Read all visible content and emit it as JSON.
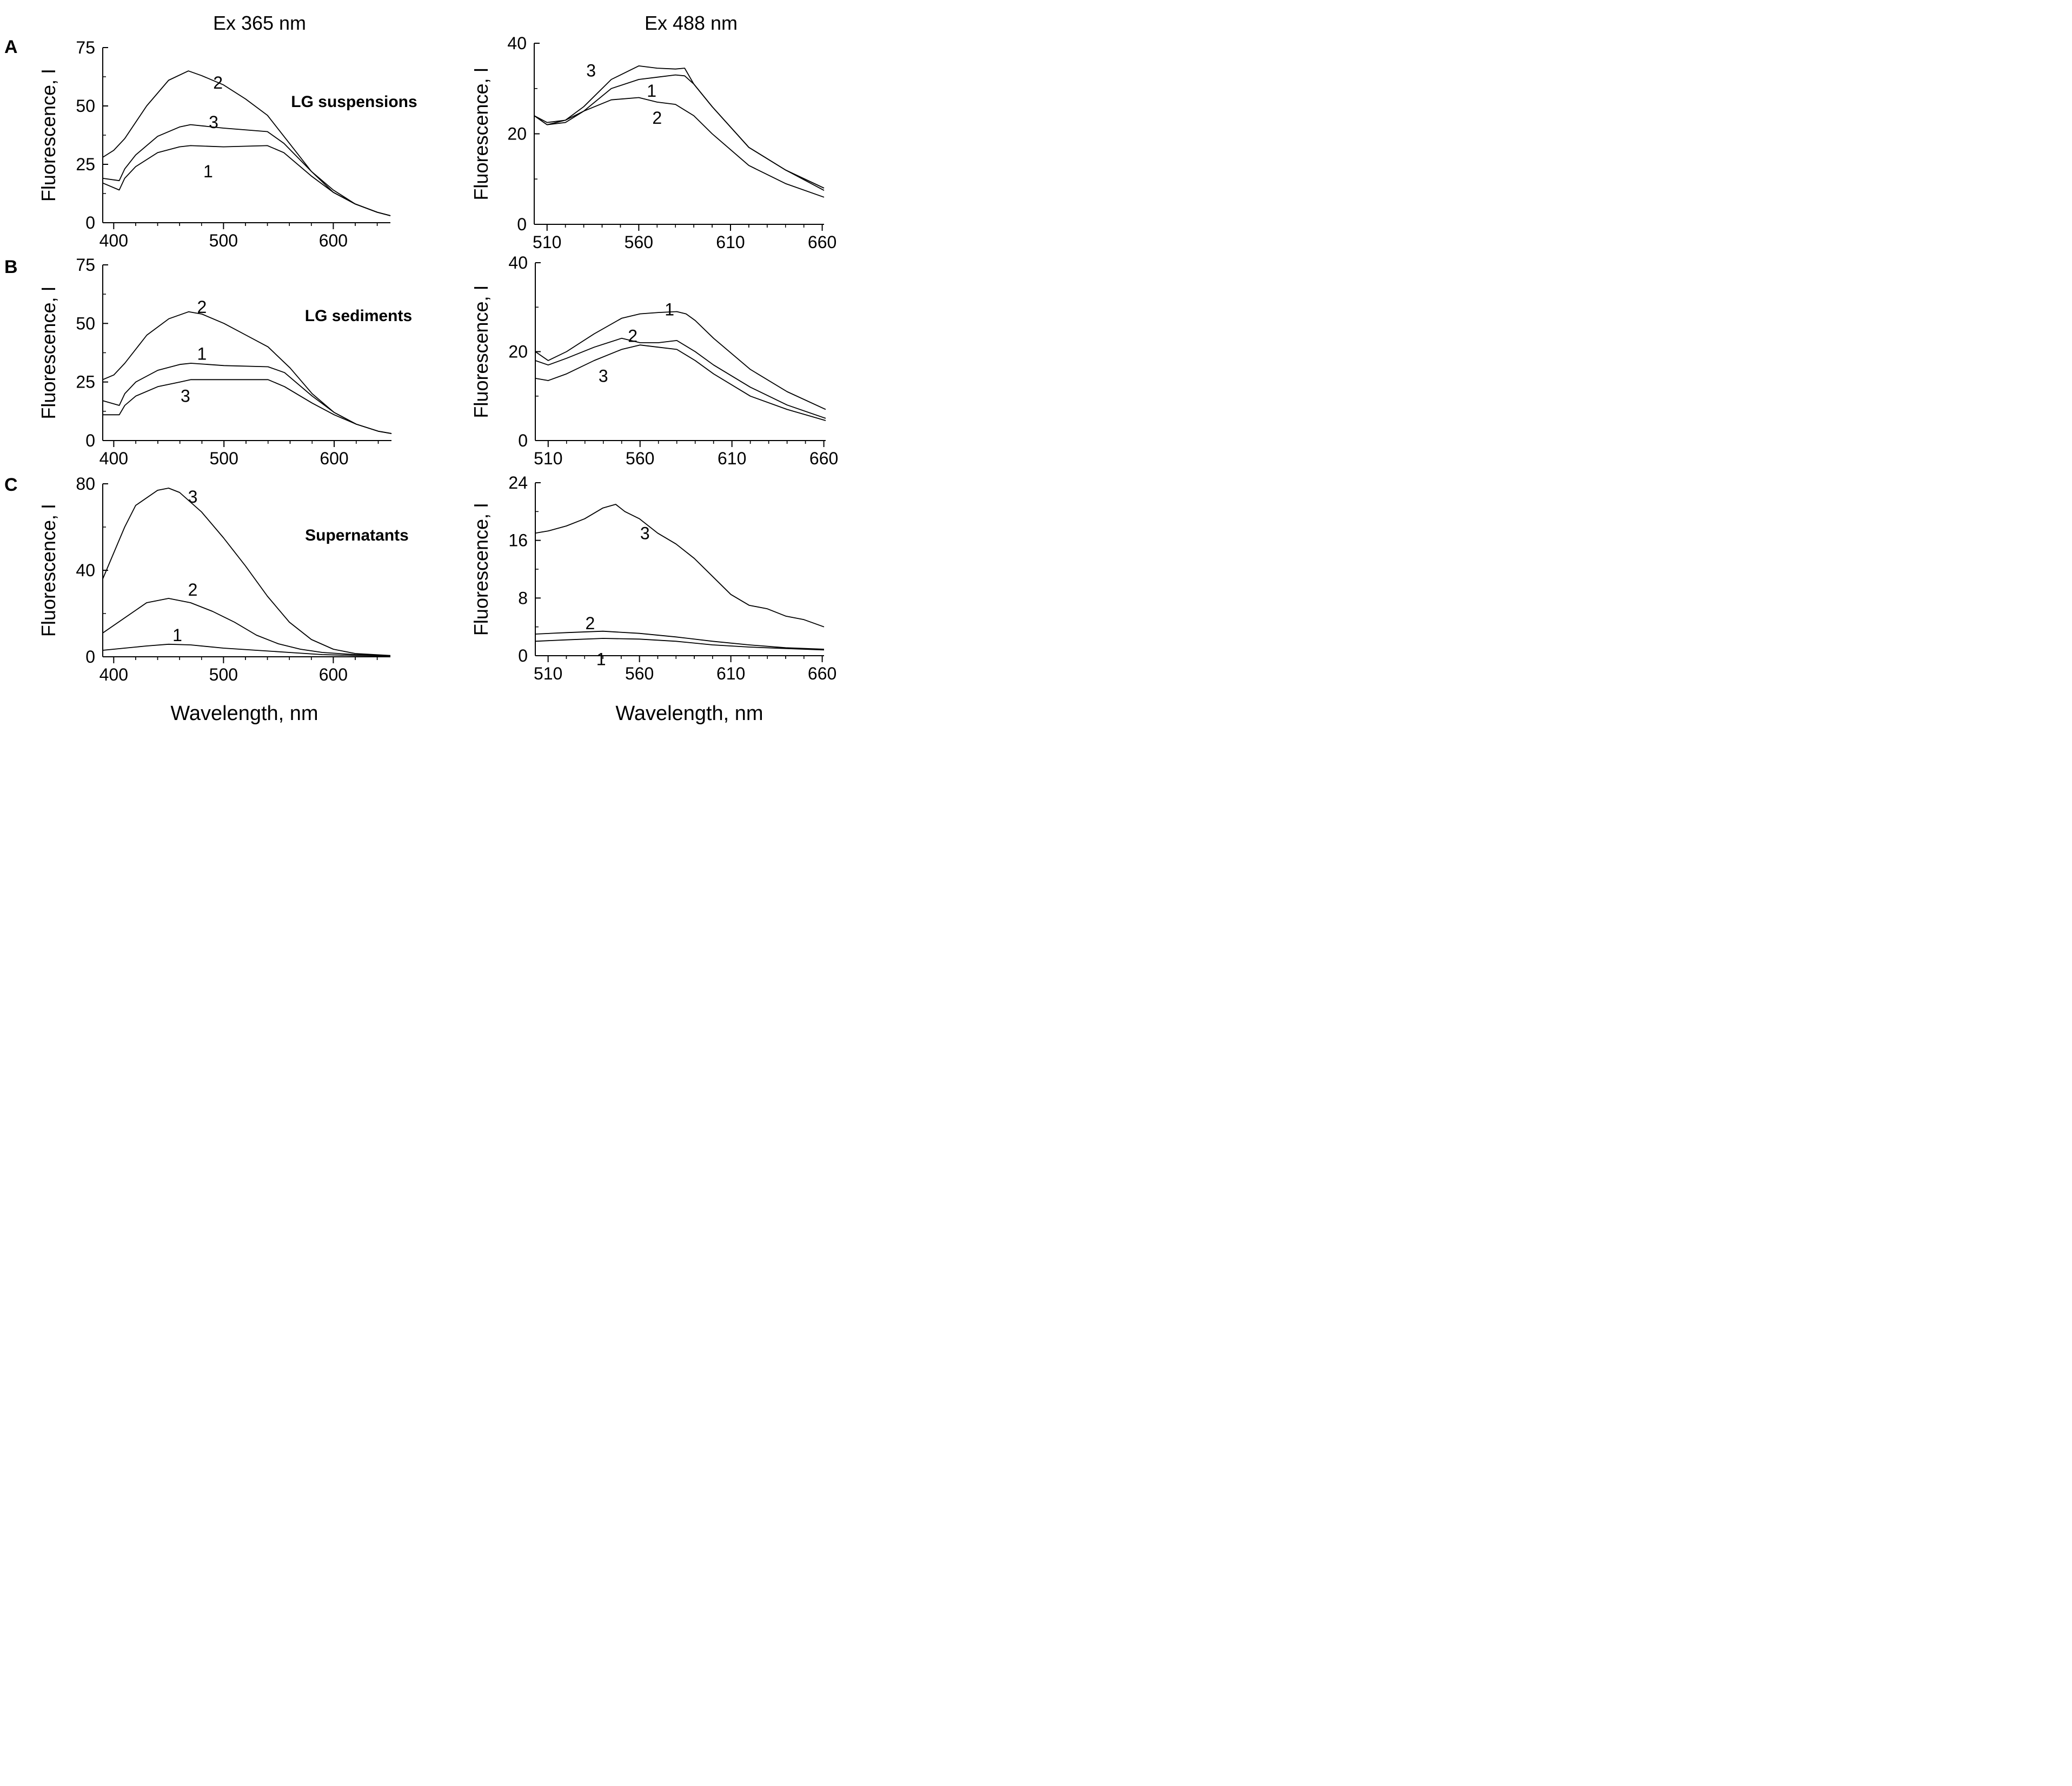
{
  "figure": {
    "column_titles": [
      "Ex 365 nm",
      "Ex 488 nm"
    ],
    "row_labels": [
      "A",
      "B",
      "C"
    ],
    "sample_labels": [
      "LG suspensions",
      "LG sediments",
      "Supernatants"
    ],
    "ylabel": "Fluorescence, I",
    "xlabel": "Wavelength, nm",
    "line_color": "#000000",
    "background": "#ffffff"
  },
  "chart_data": [
    {
      "id": "A-ex365",
      "type": "line",
      "title": "Ex 365 nm",
      "annotation": "LG suspensions",
      "xlabel": "Wavelength, nm",
      "ylabel": "Fluorescence, I",
      "xlim": [
        390,
        652
      ],
      "ylim": [
        0,
        75
      ],
      "xticks": [
        400,
        500,
        600
      ],
      "yticks": [
        0,
        25,
        50,
        75
      ],
      "series": [
        {
          "name": "1",
          "x": [
            390,
            405,
            410,
            420,
            440,
            460,
            470,
            500,
            540,
            555,
            580,
            600,
            620,
            640,
            652
          ],
          "y": [
            17,
            14,
            19,
            24,
            30,
            32.5,
            33,
            32.5,
            33,
            30,
            20,
            13,
            8,
            4.5,
            3
          ]
        },
        {
          "name": "2",
          "x": [
            390,
            400,
            410,
            430,
            450,
            468,
            480,
            500,
            520,
            540,
            560,
            580,
            600,
            620,
            640,
            652
          ],
          "y": [
            28,
            31,
            36,
            50,
            61,
            65,
            63,
            59,
            53,
            46,
            34,
            22,
            13,
            8,
            4.5,
            3
          ]
        },
        {
          "name": "3",
          "x": [
            390,
            405,
            410,
            420,
            440,
            460,
            470,
            500,
            540,
            555,
            580,
            600,
            620,
            640,
            652
          ],
          "y": [
            19,
            18,
            23,
            29,
            37,
            41,
            42,
            40.5,
            39,
            34,
            22,
            14,
            8,
            4.5,
            3
          ]
        }
      ],
      "labels": [
        {
          "text": "2",
          "x": 495,
          "y": 60
        },
        {
          "text": "3",
          "x": 491,
          "y": 43
        },
        {
          "text": "1",
          "x": 486,
          "y": 22
        }
      ]
    },
    {
      "id": "A-ex488",
      "type": "line",
      "title": "Ex 488 nm",
      "xlabel": "Wavelength, nm",
      "ylabel": "Fluorescence, I",
      "xlim": [
        503,
        661
      ],
      "ylim": [
        0,
        40
      ],
      "xticks": [
        510,
        560,
        610,
        660
      ],
      "yticks": [
        0,
        20,
        40
      ],
      "series": [
        {
          "name": "1",
          "x": [
            503,
            510,
            520,
            530,
            545,
            560,
            570,
            580,
            585,
            590,
            600,
            620,
            640,
            661
          ],
          "y": [
            24,
            22,
            22.5,
            25,
            30,
            32,
            32.5,
            33,
            32.8,
            31,
            26,
            17,
            12,
            8
          ]
        },
        {
          "name": "2",
          "x": [
            503,
            510,
            520,
            530,
            545,
            560,
            570,
            580,
            590,
            600,
            620,
            640,
            661
          ],
          "y": [
            24,
            22.5,
            23,
            25,
            27.5,
            28,
            27,
            26.5,
            24,
            20,
            13,
            9,
            6
          ]
        },
        {
          "name": "3",
          "x": [
            503,
            510,
            520,
            530,
            545,
            560,
            570,
            580,
            585,
            590,
            600,
            620,
            640,
            661
          ],
          "y": [
            24,
            22,
            23,
            26,
            32,
            35,
            34.5,
            34.3,
            34.5,
            31,
            26,
            17,
            12,
            7.5
          ]
        }
      ],
      "labels": [
        {
          "text": "3",
          "x": 534,
          "y": 34
        },
        {
          "text": "1",
          "x": 567,
          "y": 29.5
        },
        {
          "text": "2",
          "x": 570,
          "y": 23.5
        }
      ]
    },
    {
      "id": "B-ex365",
      "type": "line",
      "annotation": "LG sediments",
      "xlabel": "Wavelength, nm",
      "ylabel": "Fluorescence, I",
      "xlim": [
        390,
        652
      ],
      "ylim": [
        0,
        75
      ],
      "xticks": [
        400,
        500,
        600
      ],
      "yticks": [
        0,
        25,
        50,
        75
      ],
      "series": [
        {
          "name": "1",
          "x": [
            390,
            405,
            410,
            420,
            440,
            460,
            470,
            500,
            540,
            555,
            580,
            600,
            620,
            640,
            652
          ],
          "y": [
            17,
            15,
            20,
            25,
            30,
            32.5,
            33,
            32,
            31.5,
            29,
            19,
            12,
            7,
            4,
            3
          ]
        },
        {
          "name": "2",
          "x": [
            390,
            400,
            410,
            430,
            450,
            468,
            480,
            500,
            520,
            540,
            560,
            580,
            600,
            620,
            640,
            652
          ],
          "y": [
            26,
            28,
            33,
            45,
            52,
            55,
            54,
            50,
            45,
            40,
            31,
            20,
            12,
            7,
            4,
            3
          ]
        },
        {
          "name": "3",
          "x": [
            390,
            405,
            410,
            420,
            440,
            460,
            470,
            500,
            540,
            555,
            580,
            600,
            620,
            640,
            652
          ],
          "y": [
            11,
            11,
            15,
            19,
            23,
            25,
            26,
            26,
            26,
            23,
            16,
            11,
            7,
            4,
            3
          ]
        }
      ],
      "labels": [
        {
          "text": "2",
          "x": 480,
          "y": 57
        },
        {
          "text": "1",
          "x": 480,
          "y": 37
        },
        {
          "text": "3",
          "x": 465,
          "y": 19
        }
      ]
    },
    {
      "id": "B-ex488",
      "type": "line",
      "xlabel": "Wavelength, nm",
      "ylabel": "Fluorescence, I",
      "xlim": [
        503,
        661
      ],
      "ylim": [
        0,
        40
      ],
      "xticks": [
        510,
        560,
        610,
        660
      ],
      "yticks": [
        0,
        20,
        40
      ],
      "series": [
        {
          "name": "1",
          "x": [
            503,
            510,
            520,
            535,
            550,
            560,
            570,
            580,
            585,
            590,
            600,
            620,
            640,
            661
          ],
          "y": [
            20,
            18,
            20,
            24,
            27.5,
            28.5,
            28.8,
            29,
            28.5,
            27,
            23,
            16,
            11,
            7
          ]
        },
        {
          "name": "2",
          "x": [
            503,
            510,
            520,
            535,
            550,
            560,
            570,
            580,
            590,
            600,
            620,
            640,
            661
          ],
          "y": [
            18,
            17,
            18.5,
            21,
            23,
            22,
            22,
            22.5,
            20,
            17,
            12,
            8,
            5
          ]
        },
        {
          "name": "3",
          "x": [
            503,
            510,
            520,
            535,
            550,
            560,
            570,
            580,
            590,
            600,
            620,
            640,
            661
          ],
          "y": [
            14,
            13.5,
            15,
            18,
            20.5,
            21.5,
            21,
            20.5,
            18,
            15,
            10,
            7,
            4.5
          ]
        }
      ],
      "labels": [
        {
          "text": "1",
          "x": 576,
          "y": 29.5
        },
        {
          "text": "2",
          "x": 556,
          "y": 23.5
        },
        {
          "text": "3",
          "x": 540,
          "y": 14.5
        }
      ]
    },
    {
      "id": "C-ex365",
      "type": "line",
      "annotation": "Supernatants",
      "xlabel": "Wavelength, nm",
      "ylabel": "Fluorescence, I",
      "xlim": [
        390,
        652
      ],
      "ylim": [
        0,
        80
      ],
      "xticks": [
        400,
        500,
        600
      ],
      "yticks": [
        0,
        40,
        80
      ],
      "series": [
        {
          "name": "1",
          "x": [
            390,
            410,
            430,
            450,
            470,
            500,
            530,
            560,
            590,
            620,
            652
          ],
          "y": [
            3,
            4,
            5,
            5.8,
            5.5,
            4,
            3,
            2,
            1,
            0.6,
            0.4
          ]
        },
        {
          "name": "2",
          "x": [
            390,
            410,
            430,
            450,
            470,
            490,
            510,
            530,
            550,
            570,
            590,
            620,
            652
          ],
          "y": [
            11,
            18,
            25,
            27,
            25,
            21,
            16,
            10,
            6,
            3.5,
            2,
            1,
            0.5
          ]
        },
        {
          "name": "3",
          "x": [
            390,
            400,
            410,
            420,
            440,
            450,
            460,
            480,
            500,
            520,
            540,
            560,
            580,
            600,
            620,
            652
          ],
          "y": [
            36,
            48,
            60,
            70,
            77,
            78,
            76,
            67,
            55,
            42,
            28,
            16,
            8,
            3.5,
            1.5,
            0.6
          ]
        }
      ],
      "labels": [
        {
          "text": "3",
          "x": 472,
          "y": 74
        },
        {
          "text": "2",
          "x": 472,
          "y": 31
        },
        {
          "text": "1",
          "x": 458,
          "y": 10
        }
      ]
    },
    {
      "id": "C-ex488",
      "type": "line",
      "xlabel": "Wavelength, nm",
      "ylabel": "Fluorescence, I",
      "xlim": [
        503,
        661
      ],
      "ylim": [
        0,
        24
      ],
      "xticks": [
        510,
        560,
        610,
        660
      ],
      "yticks": [
        0,
        8,
        16,
        24
      ],
      "series": [
        {
          "name": "1",
          "x": [
            503,
            520,
            540,
            560,
            580,
            600,
            620,
            640,
            661
          ],
          "y": [
            2,
            2.2,
            2.4,
            2.3,
            2,
            1.5,
            1.2,
            1,
            0.8
          ]
        },
        {
          "name": "2",
          "x": [
            503,
            520,
            540,
            560,
            580,
            600,
            620,
            640,
            661
          ],
          "y": [
            3,
            3.2,
            3.4,
            3.1,
            2.6,
            2,
            1.5,
            1.1,
            0.9
          ]
        },
        {
          "name": "3",
          "x": [
            503,
            510,
            520,
            530,
            540,
            547,
            552,
            560,
            570,
            580,
            590,
            600,
            610,
            620,
            630,
            640,
            650,
            661
          ],
          "y": [
            17,
            17.3,
            18,
            19,
            20.5,
            21,
            20,
            19,
            17,
            15.5,
            13.5,
            11,
            8.5,
            7,
            6.5,
            5.5,
            5,
            4
          ]
        }
      ],
      "labels": [
        {
          "text": "3",
          "x": 563,
          "y": 17
        },
        {
          "text": "2",
          "x": 533,
          "y": 4.5
        },
        {
          "text": "1",
          "x": 539,
          "y": -0.5
        }
      ]
    }
  ]
}
